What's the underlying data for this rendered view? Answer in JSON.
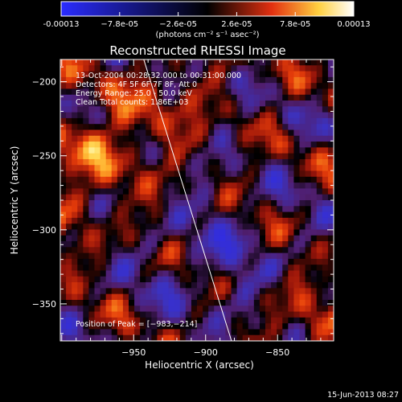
{
  "chart_data": {
    "type": "heatmap",
    "title": "Reconstructed RHESSI Image",
    "xlabel": "Heliocentric X (arcsec)",
    "ylabel": "Heliocentric Y (arcsec)",
    "xlim": [
      -1001,
      -811
    ],
    "ylim": [
      -375,
      -185
    ],
    "xticks": [
      -950,
      -900,
      -850
    ],
    "yticks": [
      -200,
      -250,
      -300,
      -350
    ],
    "colorbar": {
      "ticks": [
        -0.00013,
        -7.8e-05,
        -2.6e-05,
        2.6e-05,
        7.8e-05,
        0.00013
      ],
      "tick_labels": [
        "-0.00013",
        "−7.8e-05",
        "−2.6e-05",
        "2.6e-05",
        "7.8e-05",
        "0.00013"
      ],
      "units_label": "(photons cm⁻² s⁻¹ asec⁻²)",
      "range": [
        -0.00013,
        0.00013
      ],
      "colormap": "red-temperature"
    },
    "annotations": {
      "time_range": "13-Oct-2004 00:28:32.000 to 00:31:00.000",
      "detectors": "Detectors: 4F 5F 6F 7F 8F, Att 0",
      "energy_range": "Energy Range: 25.0 - 50.0 keV",
      "total_counts": "Clean     Total counts: 1.86E+03",
      "peak": "Position of Peak = [−983,−214]"
    },
    "limb_line": {
      "x": [
        -943,
        -882
      ],
      "y": [
        -185,
        -375
      ]
    },
    "peak_position": [
      -983,
      -214
    ],
    "footer_date": "15-Jun-2013 08:27"
  },
  "colors": {
    "background": "#000000",
    "foreground": "#ffffff"
  }
}
